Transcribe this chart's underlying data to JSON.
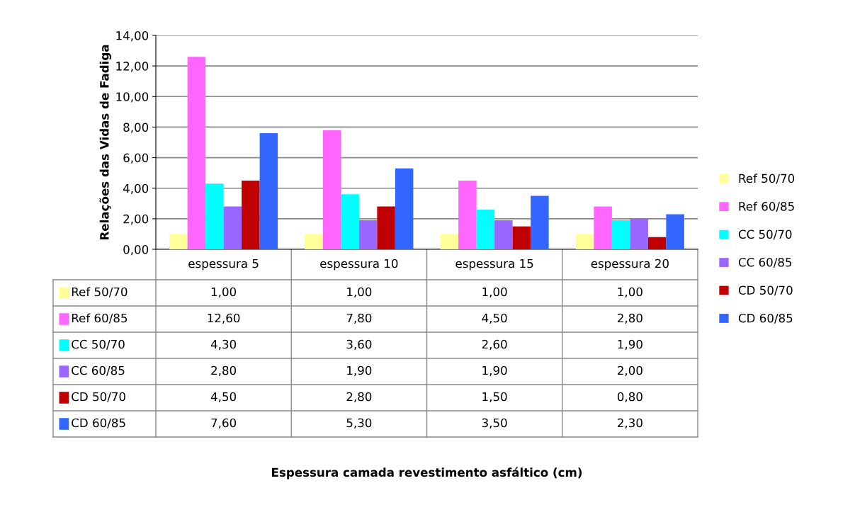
{
  "chart_data": {
    "type": "bar",
    "ylabel": "Relações das Vidas de Fadiga",
    "annotations": [
      "Espessura camada revestimento asfáltico (cm)"
    ],
    "categories": [
      "espessura 5",
      "espessura 10",
      "espessura 15",
      "espessura 20"
    ],
    "series": [
      {
        "name": "Ref 50/70",
        "color": "#ffff99",
        "values": [
          1.0,
          1.0,
          1.0,
          1.0
        ],
        "value_labels": [
          "1,00",
          "1,00",
          "1,00",
          "1,00"
        ]
      },
      {
        "name": "Ref 60/85",
        "color": "#ff66ff",
        "values": [
          12.6,
          7.8,
          4.5,
          2.8
        ],
        "value_labels": [
          "12,60",
          "7,80",
          "4,50",
          "2,80"
        ]
      },
      {
        "name": "CC 50/70",
        "color": "#00ffff",
        "values": [
          4.3,
          3.6,
          2.6,
          1.9
        ],
        "value_labels": [
          "4,30",
          "3,60",
          "2,60",
          "1,90"
        ]
      },
      {
        "name": "CC 60/85",
        "color": "#9966ff",
        "values": [
          2.8,
          1.9,
          1.9,
          2.0
        ],
        "value_labels": [
          "2,80",
          "1,90",
          "1,90",
          "2,00"
        ]
      },
      {
        "name": "CD 50/70",
        "color": "#c00000",
        "values": [
          4.5,
          2.8,
          1.5,
          0.8
        ],
        "value_labels": [
          "4,50",
          "2,80",
          "1,50",
          "0,80"
        ]
      },
      {
        "name": "CD 60/85",
        "color": "#3366ff",
        "values": [
          7.6,
          5.3,
          3.5,
          2.3
        ],
        "value_labels": [
          "7,60",
          "5,30",
          "3,50",
          "2,30"
        ]
      }
    ],
    "ylim": [
      0,
      14
    ],
    "yticks": [
      {
        "value": 0,
        "label": "0,00"
      },
      {
        "value": 2,
        "label": "2,00"
      },
      {
        "value": 4,
        "label": "4,00"
      },
      {
        "value": 6,
        "label": "6,00"
      },
      {
        "value": 8,
        "label": "8,00"
      },
      {
        "value": 10,
        "label": "10,00"
      },
      {
        "value": 12,
        "label": "12,00"
      },
      {
        "value": 14,
        "label": "14,00"
      }
    ],
    "grid": "y",
    "legend": "right"
  }
}
